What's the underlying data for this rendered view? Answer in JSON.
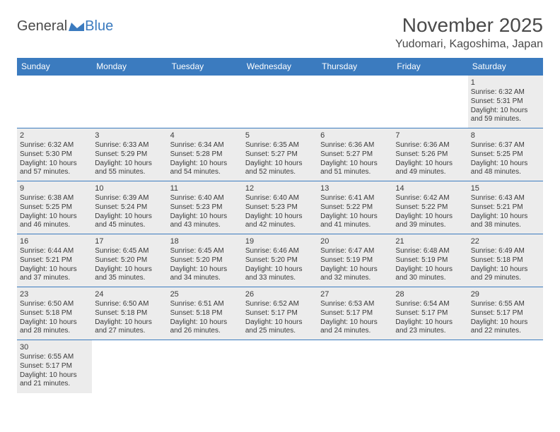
{
  "logo": {
    "text1": "General",
    "text2": "Blue"
  },
  "header": {
    "month_title": "November 2025",
    "location": "Yudomari, Kagoshima, Japan"
  },
  "colors": {
    "header_bg": "#3b7bbf",
    "header_text": "#ffffff",
    "cell_bg": "#ececec",
    "border": "#3b7bbf",
    "text": "#3a3a3a"
  },
  "days_of_week": [
    "Sunday",
    "Monday",
    "Tuesday",
    "Wednesday",
    "Thursday",
    "Friday",
    "Saturday"
  ],
  "weeks": [
    [
      null,
      null,
      null,
      null,
      null,
      null,
      {
        "n": "1",
        "sr": "Sunrise: 6:32 AM",
        "ss": "Sunset: 5:31 PM",
        "dl1": "Daylight: 10 hours",
        "dl2": "and 59 minutes."
      }
    ],
    [
      {
        "n": "2",
        "sr": "Sunrise: 6:32 AM",
        "ss": "Sunset: 5:30 PM",
        "dl1": "Daylight: 10 hours",
        "dl2": "and 57 minutes."
      },
      {
        "n": "3",
        "sr": "Sunrise: 6:33 AM",
        "ss": "Sunset: 5:29 PM",
        "dl1": "Daylight: 10 hours",
        "dl2": "and 55 minutes."
      },
      {
        "n": "4",
        "sr": "Sunrise: 6:34 AM",
        "ss": "Sunset: 5:28 PM",
        "dl1": "Daylight: 10 hours",
        "dl2": "and 54 minutes."
      },
      {
        "n": "5",
        "sr": "Sunrise: 6:35 AM",
        "ss": "Sunset: 5:27 PM",
        "dl1": "Daylight: 10 hours",
        "dl2": "and 52 minutes."
      },
      {
        "n": "6",
        "sr": "Sunrise: 6:36 AM",
        "ss": "Sunset: 5:27 PM",
        "dl1": "Daylight: 10 hours",
        "dl2": "and 51 minutes."
      },
      {
        "n": "7",
        "sr": "Sunrise: 6:36 AM",
        "ss": "Sunset: 5:26 PM",
        "dl1": "Daylight: 10 hours",
        "dl2": "and 49 minutes."
      },
      {
        "n": "8",
        "sr": "Sunrise: 6:37 AM",
        "ss": "Sunset: 5:25 PM",
        "dl1": "Daylight: 10 hours",
        "dl2": "and 48 minutes."
      }
    ],
    [
      {
        "n": "9",
        "sr": "Sunrise: 6:38 AM",
        "ss": "Sunset: 5:25 PM",
        "dl1": "Daylight: 10 hours",
        "dl2": "and 46 minutes."
      },
      {
        "n": "10",
        "sr": "Sunrise: 6:39 AM",
        "ss": "Sunset: 5:24 PM",
        "dl1": "Daylight: 10 hours",
        "dl2": "and 45 minutes."
      },
      {
        "n": "11",
        "sr": "Sunrise: 6:40 AM",
        "ss": "Sunset: 5:23 PM",
        "dl1": "Daylight: 10 hours",
        "dl2": "and 43 minutes."
      },
      {
        "n": "12",
        "sr": "Sunrise: 6:40 AM",
        "ss": "Sunset: 5:23 PM",
        "dl1": "Daylight: 10 hours",
        "dl2": "and 42 minutes."
      },
      {
        "n": "13",
        "sr": "Sunrise: 6:41 AM",
        "ss": "Sunset: 5:22 PM",
        "dl1": "Daylight: 10 hours",
        "dl2": "and 41 minutes."
      },
      {
        "n": "14",
        "sr": "Sunrise: 6:42 AM",
        "ss": "Sunset: 5:22 PM",
        "dl1": "Daylight: 10 hours",
        "dl2": "and 39 minutes."
      },
      {
        "n": "15",
        "sr": "Sunrise: 6:43 AM",
        "ss": "Sunset: 5:21 PM",
        "dl1": "Daylight: 10 hours",
        "dl2": "and 38 minutes."
      }
    ],
    [
      {
        "n": "16",
        "sr": "Sunrise: 6:44 AM",
        "ss": "Sunset: 5:21 PM",
        "dl1": "Daylight: 10 hours",
        "dl2": "and 37 minutes."
      },
      {
        "n": "17",
        "sr": "Sunrise: 6:45 AM",
        "ss": "Sunset: 5:20 PM",
        "dl1": "Daylight: 10 hours",
        "dl2": "and 35 minutes."
      },
      {
        "n": "18",
        "sr": "Sunrise: 6:45 AM",
        "ss": "Sunset: 5:20 PM",
        "dl1": "Daylight: 10 hours",
        "dl2": "and 34 minutes."
      },
      {
        "n": "19",
        "sr": "Sunrise: 6:46 AM",
        "ss": "Sunset: 5:20 PM",
        "dl1": "Daylight: 10 hours",
        "dl2": "and 33 minutes."
      },
      {
        "n": "20",
        "sr": "Sunrise: 6:47 AM",
        "ss": "Sunset: 5:19 PM",
        "dl1": "Daylight: 10 hours",
        "dl2": "and 32 minutes."
      },
      {
        "n": "21",
        "sr": "Sunrise: 6:48 AM",
        "ss": "Sunset: 5:19 PM",
        "dl1": "Daylight: 10 hours",
        "dl2": "and 30 minutes."
      },
      {
        "n": "22",
        "sr": "Sunrise: 6:49 AM",
        "ss": "Sunset: 5:18 PM",
        "dl1": "Daylight: 10 hours",
        "dl2": "and 29 minutes."
      }
    ],
    [
      {
        "n": "23",
        "sr": "Sunrise: 6:50 AM",
        "ss": "Sunset: 5:18 PM",
        "dl1": "Daylight: 10 hours",
        "dl2": "and 28 minutes."
      },
      {
        "n": "24",
        "sr": "Sunrise: 6:50 AM",
        "ss": "Sunset: 5:18 PM",
        "dl1": "Daylight: 10 hours",
        "dl2": "and 27 minutes."
      },
      {
        "n": "25",
        "sr": "Sunrise: 6:51 AM",
        "ss": "Sunset: 5:18 PM",
        "dl1": "Daylight: 10 hours",
        "dl2": "and 26 minutes."
      },
      {
        "n": "26",
        "sr": "Sunrise: 6:52 AM",
        "ss": "Sunset: 5:17 PM",
        "dl1": "Daylight: 10 hours",
        "dl2": "and 25 minutes."
      },
      {
        "n": "27",
        "sr": "Sunrise: 6:53 AM",
        "ss": "Sunset: 5:17 PM",
        "dl1": "Daylight: 10 hours",
        "dl2": "and 24 minutes."
      },
      {
        "n": "28",
        "sr": "Sunrise: 6:54 AM",
        "ss": "Sunset: 5:17 PM",
        "dl1": "Daylight: 10 hours",
        "dl2": "and 23 minutes."
      },
      {
        "n": "29",
        "sr": "Sunrise: 6:55 AM",
        "ss": "Sunset: 5:17 PM",
        "dl1": "Daylight: 10 hours",
        "dl2": "and 22 minutes."
      }
    ],
    [
      {
        "n": "30",
        "sr": "Sunrise: 6:55 AM",
        "ss": "Sunset: 5:17 PM",
        "dl1": "Daylight: 10 hours",
        "dl2": "and 21 minutes."
      },
      null,
      null,
      null,
      null,
      null,
      null
    ]
  ]
}
